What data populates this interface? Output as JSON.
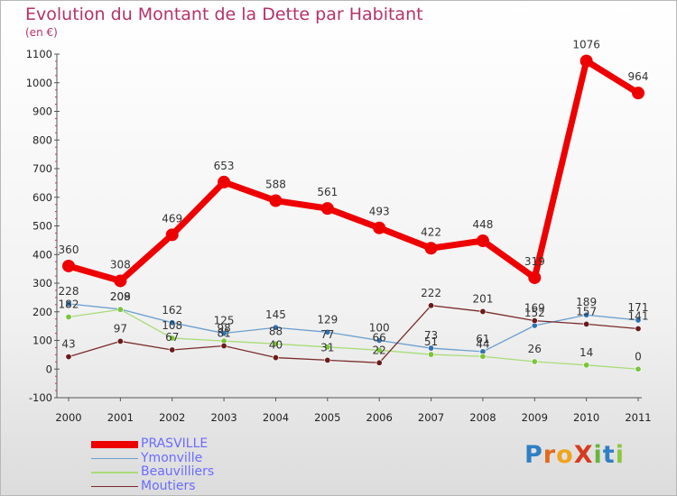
{
  "title": "Evolution du Montant de la Dette par Habitant",
  "unit": "(en €)",
  "logo": "ProXiti",
  "logo_letters": [
    {
      "ch": "P",
      "color": "#2f7fc4"
    },
    {
      "ch": "r",
      "color": "#e26a1a"
    },
    {
      "ch": "o",
      "color": "#f0a41c"
    },
    {
      "ch": "X",
      "color": "#d63b1f"
    },
    {
      "ch": "i",
      "color": "#6ab33c"
    },
    {
      "ch": "t",
      "color": "#2f7fc4"
    },
    {
      "ch": "i",
      "color": "#8dc63f"
    }
  ],
  "chart_data": {
    "type": "line",
    "title": "Evolution du Montant de la Dette par Habitant",
    "ylabel": "(en €)",
    "xlabel": "",
    "categories": [
      "2000",
      "2001",
      "2002",
      "2003",
      "2004",
      "2005",
      "2006",
      "2007",
      "2008",
      "2009",
      "2010",
      "2011"
    ],
    "ylim": [
      -100,
      1100
    ],
    "yticks": [
      -100,
      0,
      100,
      200,
      300,
      400,
      500,
      600,
      700,
      800,
      900,
      1000,
      1100
    ],
    "grid": false,
    "legend_position": "bottom-left",
    "series": [
      {
        "name": "PRASVILLE",
        "color": "#ee0000",
        "width": 7,
        "marker": 7,
        "values": [
          360,
          308,
          469,
          653,
          588,
          561,
          493,
          422,
          448,
          319,
          1076,
          964
        ]
      },
      {
        "name": "Ymonville",
        "color": "#6a9fcf",
        "marker_color": "#2f73b3",
        "width": 1.3,
        "marker": 3.2,
        "values": [
          228,
          209,
          162,
          125,
          145,
          129,
          100,
          73,
          61,
          152,
          189,
          171
        ]
      },
      {
        "name": "Beauvilliers",
        "color": "#a8dc78",
        "marker_color": "#7bc43a",
        "width": 1.3,
        "marker": 3.2,
        "values": [
          182,
          208,
          108,
          98,
          88,
          77,
          66,
          51,
          44,
          26,
          14,
          0
        ]
      },
      {
        "name": "Moutiers",
        "color": "#7a2a2a",
        "marker_color": "#6a1b1b",
        "width": 1.3,
        "marker": 3.2,
        "values": [
          43,
          97,
          67,
          81,
          40,
          31,
          22,
          222,
          201,
          169,
          157,
          141
        ]
      }
    ]
  }
}
